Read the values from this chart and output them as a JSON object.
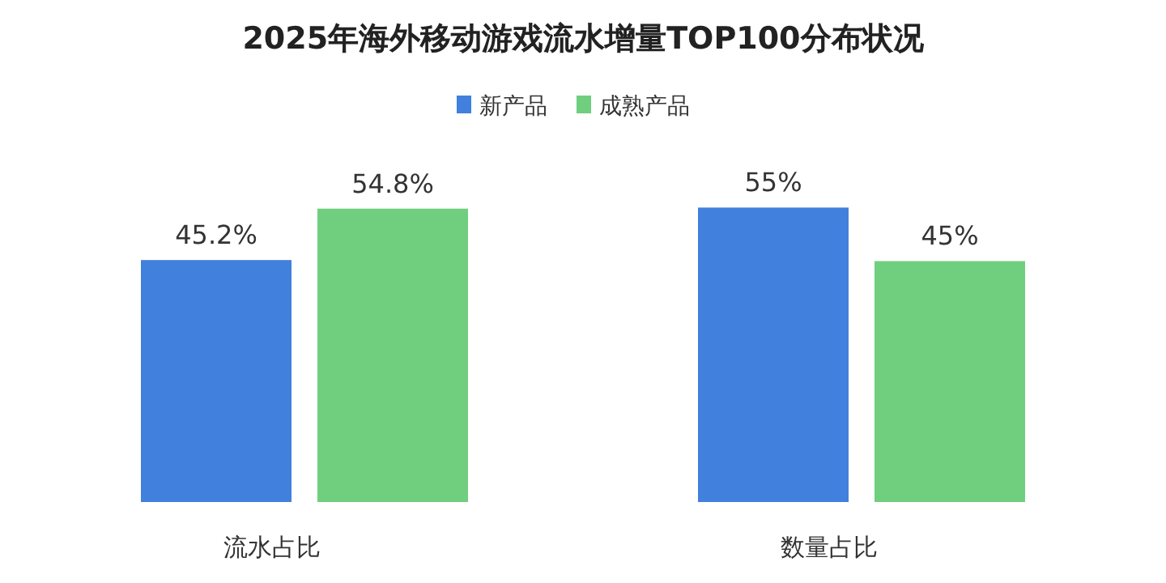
{
  "chart_data": {
    "type": "bar",
    "title": "2025年海外移动游戏流水增量TOP100分布状况",
    "categories": [
      "流水占比",
      "数量占比"
    ],
    "legend": "top right",
    "series": [
      {
        "name": "新产品",
        "color": "#4180dc",
        "values": [
          45.2,
          55
        ],
        "value_labels": [
          "45.2%",
          "55%"
        ]
      },
      {
        "name": "成熟产品",
        "color": "#6fcf7e",
        "values": [
          54.8,
          45
        ],
        "value_labels": [
          "54.8%",
          "45%"
        ]
      }
    ]
  }
}
